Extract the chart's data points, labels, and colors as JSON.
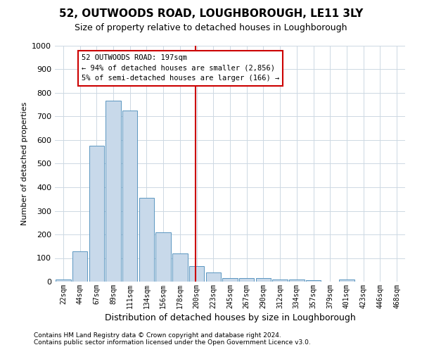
{
  "title": "52, OUTWOODS ROAD, LOUGHBOROUGH, LE11 3LY",
  "subtitle": "Size of property relative to detached houses in Loughborough",
  "xlabel": "Distribution of detached houses by size in Loughborough",
  "ylabel": "Number of detached properties",
  "footnote1": "Contains HM Land Registry data © Crown copyright and database right 2024.",
  "footnote2": "Contains public sector information licensed under the Open Government Licence v3.0.",
  "bar_labels": [
    "22sqm",
    "44sqm",
    "67sqm",
    "89sqm",
    "111sqm",
    "134sqm",
    "156sqm",
    "178sqm",
    "200sqm",
    "223sqm",
    "245sqm",
    "267sqm",
    "290sqm",
    "312sqm",
    "334sqm",
    "357sqm",
    "379sqm",
    "401sqm",
    "423sqm",
    "446sqm",
    "468sqm"
  ],
  "bar_values": [
    10,
    127,
    577,
    768,
    725,
    355,
    210,
    120,
    65,
    38,
    15,
    15,
    15,
    8,
    8,
    5,
    0,
    8,
    0,
    0,
    0
  ],
  "bar_color": "#c8d9ea",
  "bar_edge_color": "#5a96c0",
  "vline_color": "#cc0000",
  "vline_pos": 7.95,
  "ylim_max": 1000,
  "yticks": [
    0,
    100,
    200,
    300,
    400,
    500,
    600,
    700,
    800,
    900,
    1000
  ],
  "annotation_line1": "52 OUTWOODS ROAD: 197sqm",
  "annotation_line2": "← 94% of detached houses are smaller (2,856)",
  "annotation_line3": "5% of semi-detached houses are larger (166) →",
  "annotation_box_edgecolor": "#cc0000",
  "title_fontsize": 11,
  "subtitle_fontsize": 9,
  "xlabel_fontsize": 9,
  "ylabel_fontsize": 8,
  "tick_fontsize": 7,
  "ytick_fontsize": 8,
  "annotation_fontsize": 7.5,
  "footnote_fontsize": 6.5,
  "grid_color": "#cdd8e3"
}
